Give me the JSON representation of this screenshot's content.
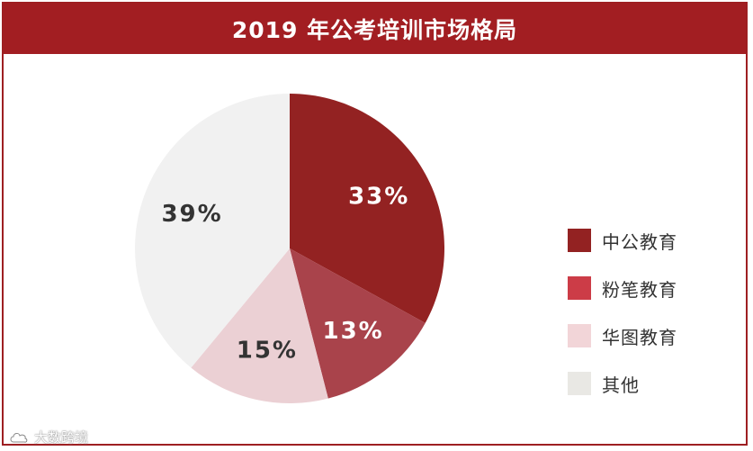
{
  "title": "2019 年公考培训市场格局",
  "chart_data": {
    "type": "pie",
    "title": "2019 年公考培训市场格局",
    "slices": [
      {
        "name": "中公教育",
        "value": 33,
        "label": "33%",
        "color": "#932222",
        "label_color": "#ffffff"
      },
      {
        "name": "粉笔教育",
        "value": 13,
        "label": "13%",
        "color": "#a9434b",
        "label_color": "#ffffff"
      },
      {
        "name": "华图教育",
        "value": 15,
        "label": "15%",
        "color": "#ebd0d4",
        "label_color": "#333333"
      },
      {
        "name": "其他",
        "value": 39,
        "label": "39%",
        "color": "#f1f1f1",
        "label_color": "#333333"
      }
    ],
    "legend_position": "right"
  },
  "legend": [
    {
      "label": "中公教育",
      "color": "#932222"
    },
    {
      "label": "粉笔教育",
      "color": "#cc3c47"
    },
    {
      "label": "华图教育",
      "color": "#f2d5d8"
    },
    {
      "label": "其他",
      "color": "#e9e8e4"
    }
  ],
  "watermark": {
    "text": "大数跨境",
    "icon": "cloud-logo-icon"
  }
}
